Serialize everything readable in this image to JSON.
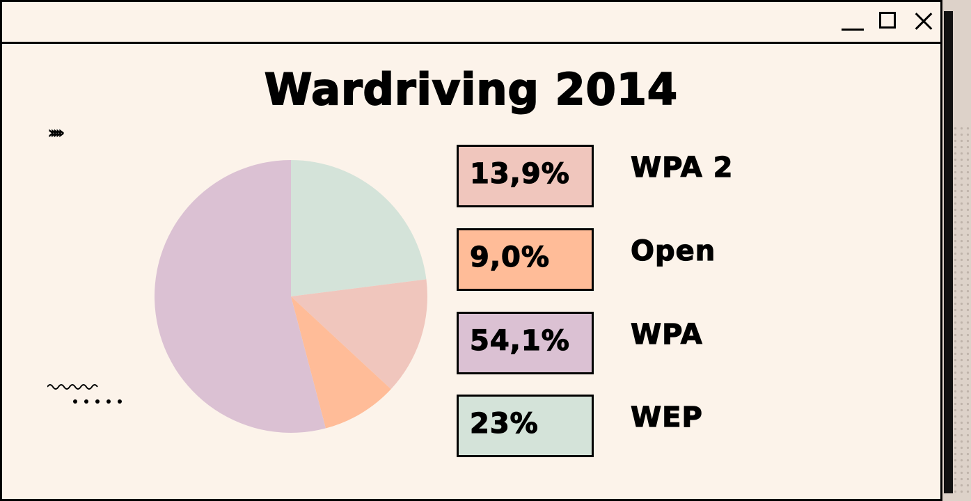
{
  "colors": {
    "wpa2": "#f0c6bd",
    "open": "#ffbc98",
    "wpa": "#dbc1d3",
    "wep": "#d4e3d9"
  },
  "chart_data": {
    "type": "pie",
    "title": "Wardriving 2014",
    "legend_position": "right",
    "slices": [
      {
        "label": "WPA 2",
        "value": 13.9,
        "display": "13,9%",
        "color": "#f0c6bd"
      },
      {
        "label": "Open",
        "value": 9.0,
        "display": "9,0%",
        "color": "#ffbc98"
      },
      {
        "label": "WPA",
        "value": 54.1,
        "display": "54,1%",
        "color": "#dbc1d3"
      },
      {
        "label": "WEP",
        "value": 23,
        "display": "23%",
        "color": "#d4e3d9"
      }
    ]
  },
  "legend": [
    {
      "value": "13,9%",
      "label": "WPA 2"
    },
    {
      "value": "9,0%",
      "label": "Open"
    },
    {
      "value": "54,1%",
      "label": "WPA"
    },
    {
      "value": "23%",
      "label": "WEP"
    }
  ]
}
